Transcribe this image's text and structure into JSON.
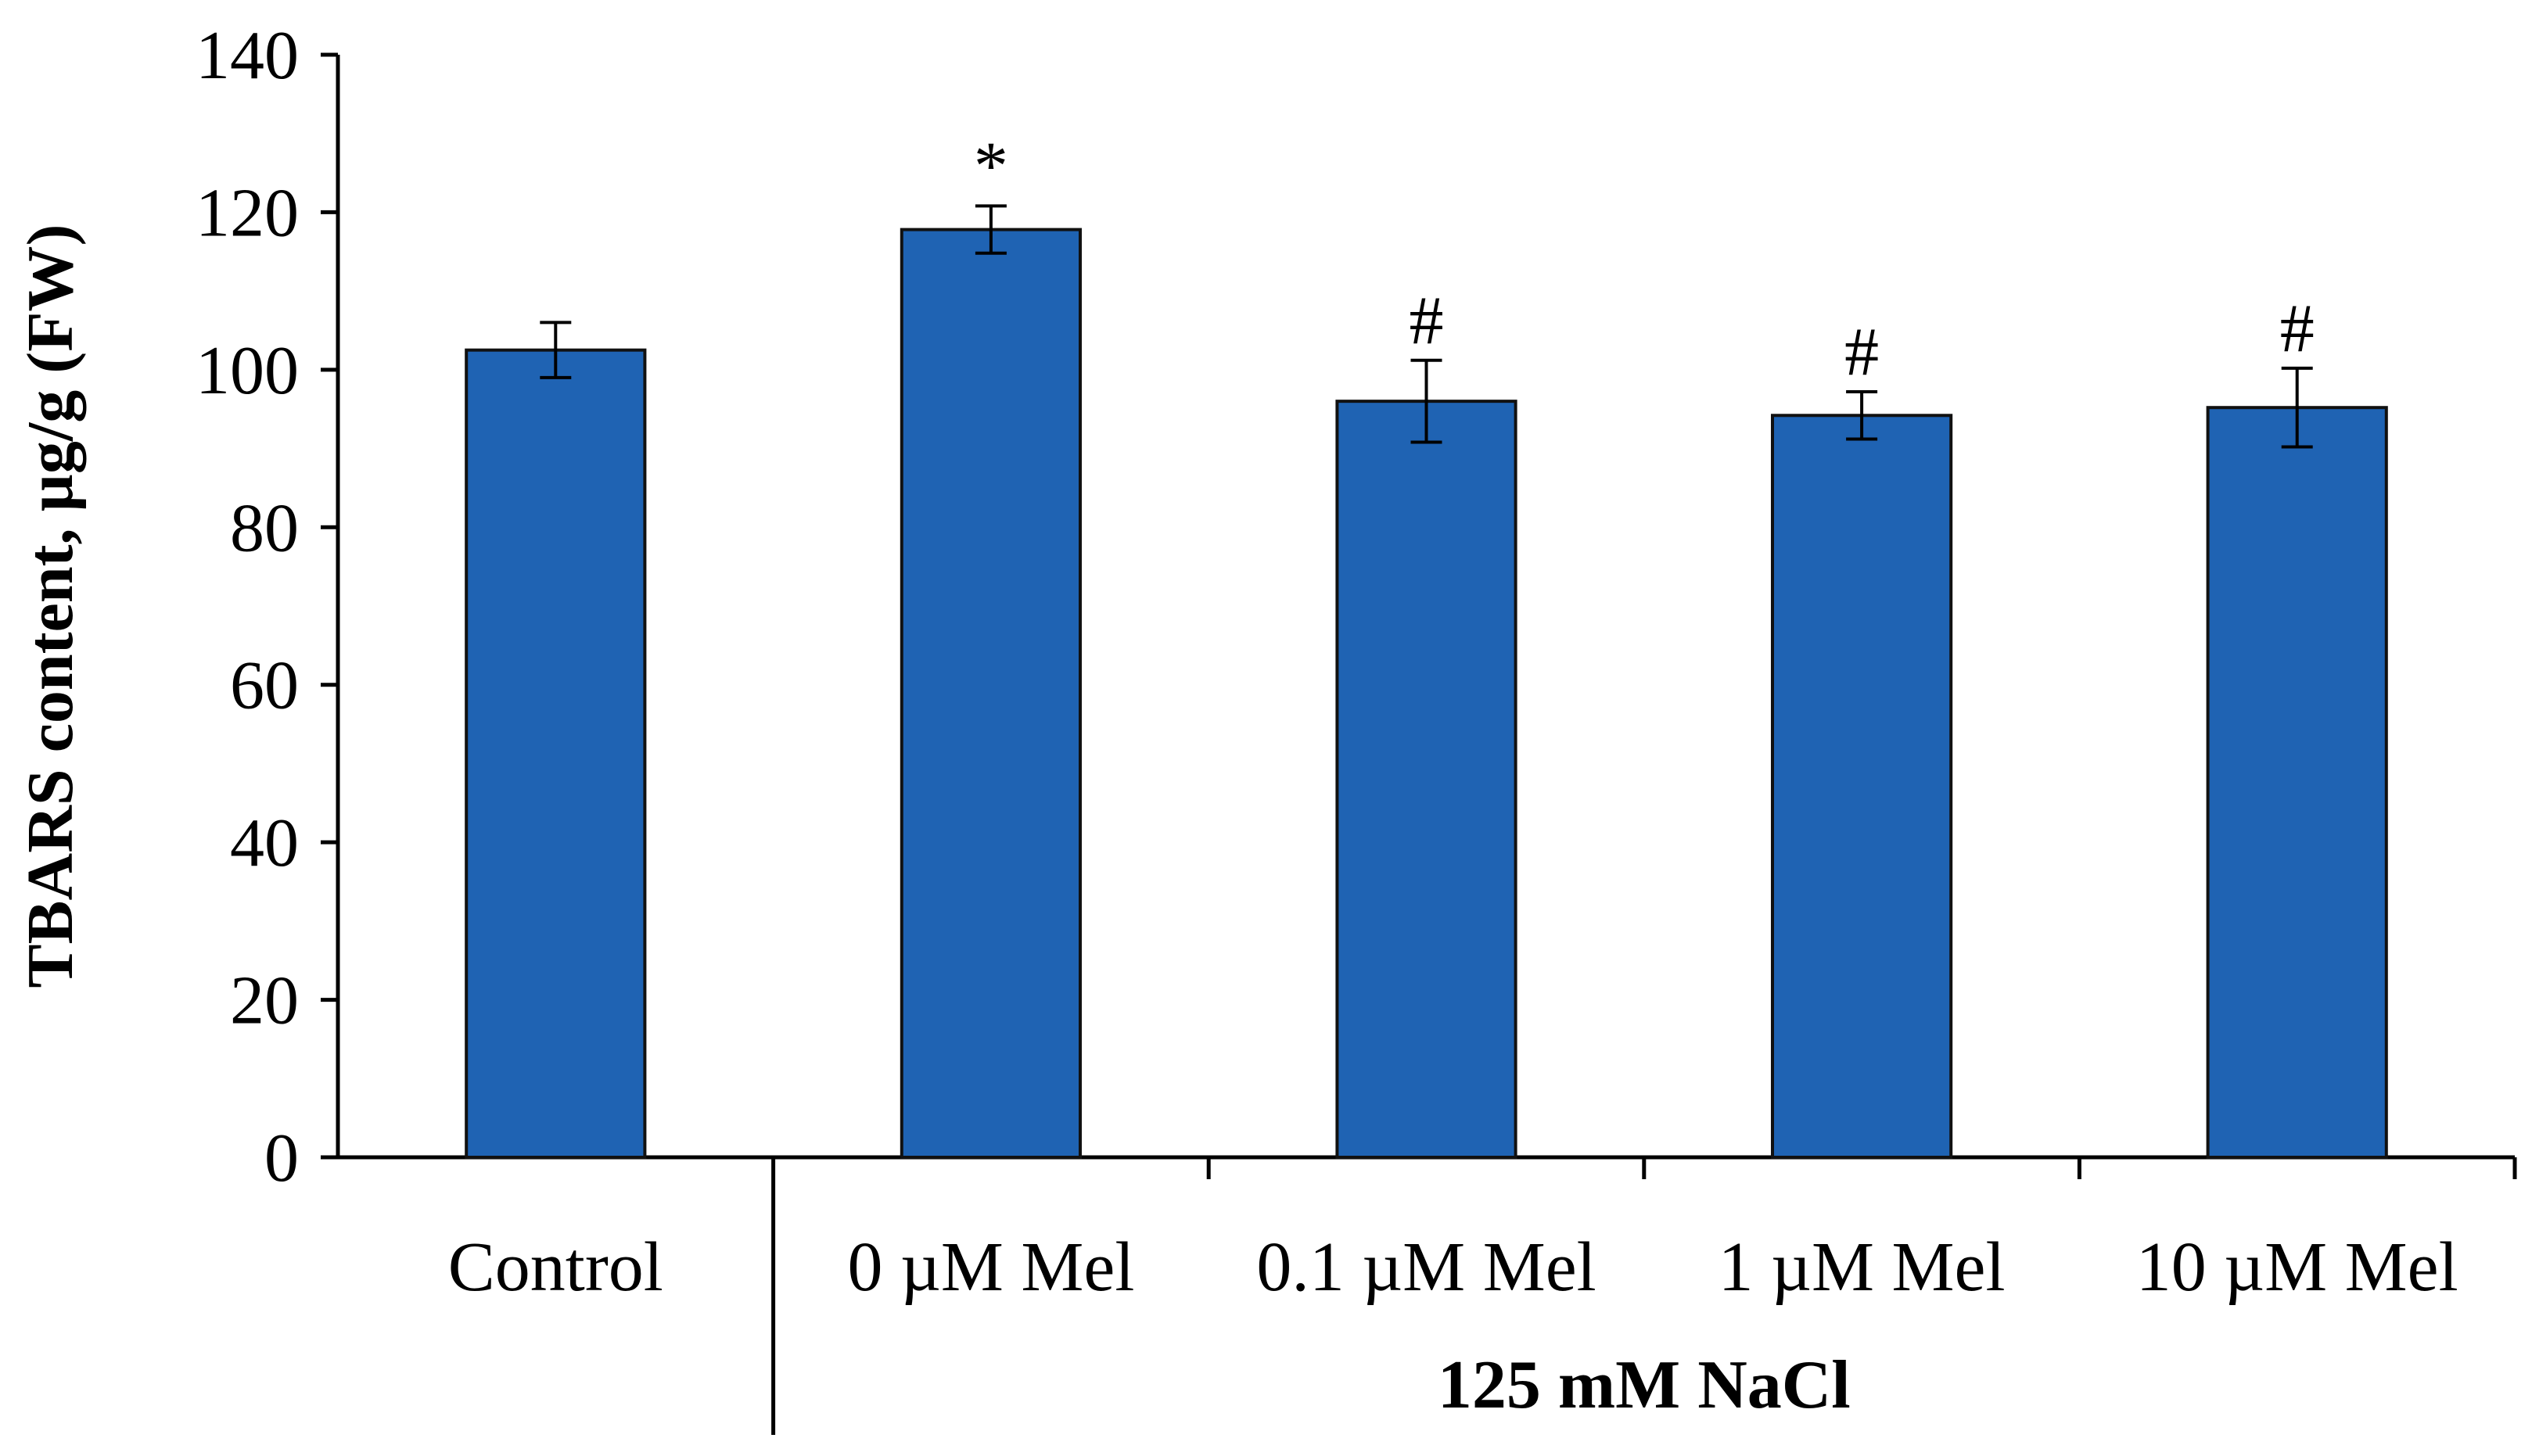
{
  "chart_data": {
    "type": "bar",
    "title": "",
    "xlabel": "",
    "ylabel": "TBARS content, µg/g (FW)",
    "ylim": [
      0,
      140
    ],
    "yticks": [
      0,
      20,
      40,
      60,
      80,
      100,
      120,
      140
    ],
    "categories": [
      "Control",
      "0 µM Mel",
      "0.1 µM Mel",
      "1 µM Mel",
      "10 µM Mel"
    ],
    "values": [
      102.5,
      117.8,
      96.0,
      94.2,
      95.2
    ],
    "errors": [
      3.5,
      3.0,
      5.2,
      3.0,
      5.0
    ],
    "annotations": [
      "",
      "*",
      "#",
      "#",
      "#"
    ],
    "group_label": "125 mM NaCl",
    "bar_color": "#1f63b3",
    "grid": false,
    "legend": "none"
  }
}
